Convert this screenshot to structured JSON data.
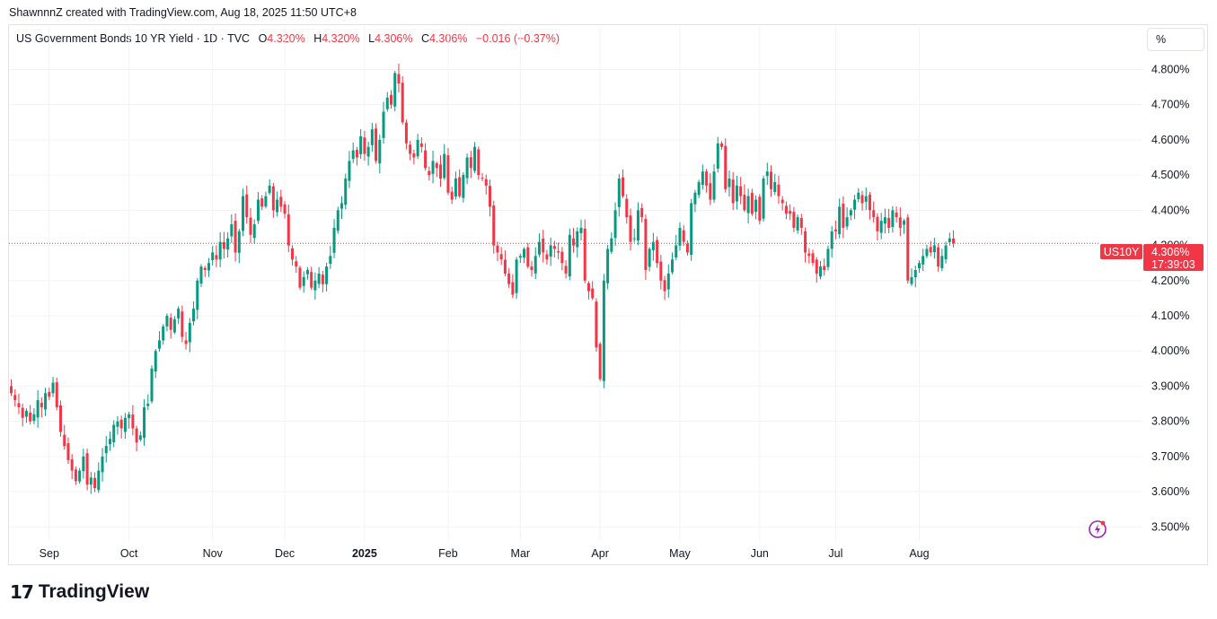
{
  "header": {
    "text": "ShawnnnZ created with TradingView.com, Aug 18, 2025 11:50 UTC+8"
  },
  "legend": {
    "symbol": "US Government Bonds 10 YR Yield · 1D · TVC",
    "o_label": "O",
    "o_value": "4.320%",
    "h_label": "H",
    "h_value": "4.320%",
    "l_label": "L",
    "l_value": "4.306%",
    "c_label": "C",
    "c_value": "4.306%",
    "change": "−0.016 (−0.37%)"
  },
  "unit_button": "%",
  "price_tag": {
    "ticker": "US10Y",
    "price": "4.306%",
    "countdown": "17:39:03"
  },
  "colors": {
    "up": "#089981",
    "down": "#f23645",
    "grid": "#f0f3fa",
    "text": "#131722",
    "accent": "#9c27b0"
  },
  "footer": {
    "brand": "TradingView",
    "logo_icon": "tradingview-logo-icon"
  },
  "chart_data": {
    "type": "candlestick",
    "title": "US Government Bonds 10 YR Yield",
    "interval": "1D",
    "source": "TVC",
    "ylim": [
      3.46,
      4.87
    ],
    "y_ticks": [
      {
        "value": 3.5,
        "label": "3.500%"
      },
      {
        "value": 3.6,
        "label": "3.600%"
      },
      {
        "value": 3.7,
        "label": "3.700%"
      },
      {
        "value": 3.8,
        "label": "3.800%"
      },
      {
        "value": 3.9,
        "label": "3.900%"
      },
      {
        "value": 4.0,
        "label": "4.000%"
      },
      {
        "value": 4.1,
        "label": "4.100%"
      },
      {
        "value": 4.2,
        "label": "4.200%"
      },
      {
        "value": 4.3,
        "label": "4.300%"
      },
      {
        "value": 4.4,
        "label": "4.400%"
      },
      {
        "value": 4.5,
        "label": "4.500%"
      },
      {
        "value": 4.6,
        "label": "4.600%"
      },
      {
        "value": 4.7,
        "label": "4.700%"
      },
      {
        "value": 4.8,
        "label": "4.800%"
      }
    ],
    "x_ticks": [
      {
        "index": 10,
        "label": "Sep",
        "bold": false
      },
      {
        "index": 31,
        "label": "Oct",
        "bold": false
      },
      {
        "index": 53,
        "label": "Nov",
        "bold": false
      },
      {
        "index": 72,
        "label": "Dec",
        "bold": false
      },
      {
        "index": 93,
        "label": "2025",
        "bold": true
      },
      {
        "index": 115,
        "label": "Feb",
        "bold": false
      },
      {
        "index": 134,
        "label": "Mar",
        "bold": false
      },
      {
        "index": 155,
        "label": "Apr",
        "bold": false
      },
      {
        "index": 176,
        "label": "May",
        "bold": false
      },
      {
        "index": 197,
        "label": "Jun",
        "bold": false
      },
      {
        "index": 217,
        "label": "Jul",
        "bold": false
      },
      {
        "index": 239,
        "label": "Aug",
        "bold": false
      }
    ],
    "last_price": 4.306,
    "closes": [
      3.88,
      3.86,
      3.84,
      3.81,
      3.83,
      3.8,
      3.82,
      3.86,
      3.84,
      3.88,
      3.87,
      3.91,
      3.84,
      3.77,
      3.73,
      3.69,
      3.66,
      3.63,
      3.66,
      3.7,
      3.62,
      3.64,
      3.61,
      3.66,
      3.7,
      3.73,
      3.75,
      3.79,
      3.8,
      3.78,
      3.81,
      3.82,
      3.78,
      3.74,
      3.76,
      3.84,
      3.85,
      3.95,
      4.0,
      4.03,
      4.07,
      4.1,
      4.06,
      4.09,
      4.12,
      4.04,
      4.02,
      4.08,
      4.12,
      4.2,
      4.24,
      4.23,
      4.25,
      4.28,
      4.26,
      4.31,
      4.29,
      4.32,
      4.36,
      4.28,
      4.34,
      4.44,
      4.38,
      4.33,
      4.36,
      4.43,
      4.41,
      4.44,
      4.47,
      4.4,
      4.43,
      4.41,
      4.39,
      4.3,
      4.26,
      4.24,
      4.18,
      4.21,
      4.23,
      4.18,
      4.2,
      4.22,
      4.19,
      4.24,
      4.27,
      4.35,
      4.4,
      4.42,
      4.49,
      4.54,
      4.57,
      4.55,
      4.61,
      4.56,
      4.58,
      4.63,
      4.54,
      4.6,
      4.68,
      4.72,
      4.7,
      4.79,
      4.76,
      4.65,
      4.59,
      4.56,
      4.55,
      4.6,
      4.58,
      4.52,
      4.5,
      4.54,
      4.52,
      4.49,
      4.56,
      4.45,
      4.43,
      4.49,
      4.44,
      4.5,
      4.55,
      4.52,
      4.58,
      4.5,
      4.49,
      4.47,
      4.41,
      4.3,
      4.28,
      4.26,
      4.22,
      4.19,
      4.16,
      4.26,
      4.27,
      4.29,
      4.24,
      4.23,
      4.27,
      4.31,
      4.28,
      4.26,
      4.3,
      4.29,
      4.28,
      4.25,
      4.22,
      4.33,
      4.3,
      4.34,
      4.35,
      4.2,
      4.17,
      4.15,
      4.01,
      3.92,
      4.2,
      4.29,
      4.32,
      4.4,
      4.49,
      4.44,
      4.38,
      4.31,
      4.32,
      4.4,
      4.38,
      4.23,
      4.29,
      4.31,
      4.25,
      4.2,
      4.17,
      4.22,
      4.26,
      4.3,
      4.35,
      4.31,
      4.28,
      4.42,
      4.45,
      4.48,
      4.51,
      4.47,
      4.43,
      4.51,
      4.59,
      4.58,
      4.46,
      4.49,
      4.42,
      4.47,
      4.44,
      4.4,
      4.44,
      4.39,
      4.43,
      4.37,
      4.49,
      4.51,
      4.46,
      4.48,
      4.44,
      4.42,
      4.39,
      4.39,
      4.35,
      4.38,
      4.35,
      4.28,
      4.27,
      4.25,
      4.22,
      4.24,
      4.23,
      4.29,
      4.34,
      4.34,
      4.41,
      4.35,
      4.38,
      4.4,
      4.43,
      4.45,
      4.42,
      4.44,
      4.4,
      4.38,
      4.34,
      4.37,
      4.38,
      4.35,
      4.4,
      4.38,
      4.35,
      4.37,
      4.2,
      4.21,
      4.23,
      4.25,
      4.27,
      4.29,
      4.28,
      4.3,
      4.24,
      4.27,
      4.3,
      4.32,
      4.306
    ]
  }
}
